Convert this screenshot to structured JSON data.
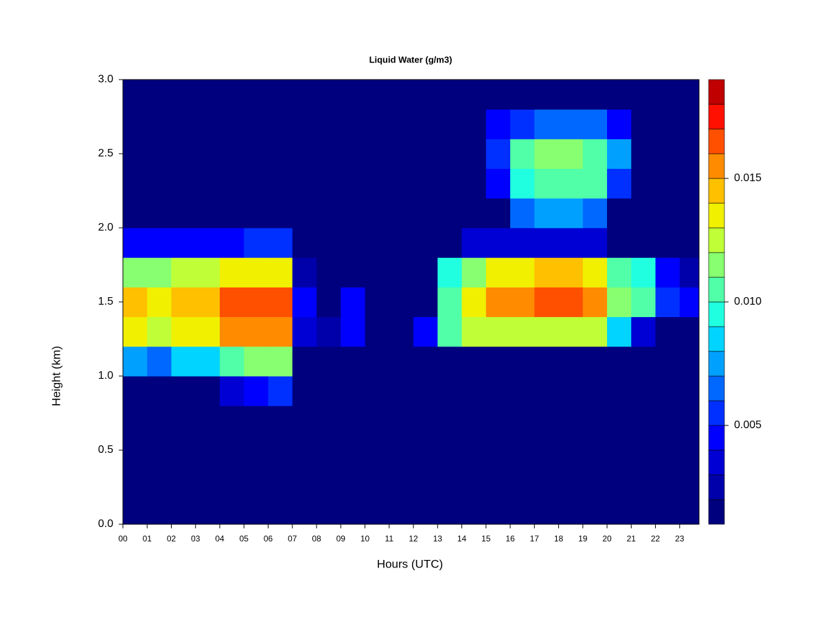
{
  "chart_data": {
    "type": "heatmap",
    "title": "Liquid Water (g/m3)",
    "xlabel": "Hours (UTC)",
    "ylabel": "Height (km)",
    "xlim": [
      0,
      23.8
    ],
    "ylim": [
      0,
      3
    ],
    "xticks": [
      {
        "value": 0,
        "label": "00"
      },
      {
        "value": 1,
        "label": "01"
      },
      {
        "value": 2,
        "label": "02"
      },
      {
        "value": 3,
        "label": "03"
      },
      {
        "value": 4,
        "label": "04"
      },
      {
        "value": 5,
        "label": "05"
      },
      {
        "value": 6,
        "label": "06"
      },
      {
        "value": 7,
        "label": "07"
      },
      {
        "value": 8,
        "label": "08"
      },
      {
        "value": 9,
        "label": "09"
      },
      10,
      11,
      12,
      13,
      14,
      15,
      16,
      17,
      18,
      19,
      20,
      21,
      22,
      23
    ],
    "yticks": [
      {
        "value": 0,
        "label": "0.0"
      },
      0.5,
      {
        "value": 1,
        "label": "1.0"
      },
      1.5,
      {
        "value": 2,
        "label": "2.0"
      },
      2.5,
      {
        "value": 3,
        "label": "3.0"
      }
    ],
    "x": [
      0,
      1,
      2,
      3,
      4,
      5,
      6,
      7,
      8,
      9,
      10,
      11,
      12,
      13,
      14,
      15,
      16,
      17,
      18,
      19,
      20,
      21,
      22,
      23
    ],
    "y": [
      0,
      0.2,
      0.4,
      0.6,
      0.8,
      1.0,
      1.2,
      1.4,
      1.6,
      1.8,
      2.0,
      2.2,
      2.4,
      2.6,
      2.8
    ],
    "values": [
      [
        0.001,
        0.001,
        0.001,
        0.001,
        0.001,
        0.001,
        0.001,
        0.001,
        0.001,
        0.001,
        0.001,
        0.001,
        0.001,
        0.001,
        0.001,
        0.001,
        0.001,
        0.001,
        0.001,
        0.001,
        0.001,
        0.001,
        0.001,
        0.001
      ],
      [
        0.001,
        0.001,
        0.001,
        0.001,
        0.001,
        0.001,
        0.001,
        0.001,
        0.001,
        0.001,
        0.001,
        0.001,
        0.001,
        0.001,
        0.001,
        0.001,
        0.001,
        0.001,
        0.001,
        0.001,
        0.001,
        0.001,
        0.001,
        0.001
      ],
      [
        0.001,
        0.001,
        0.001,
        0.001,
        0.001,
        0.001,
        0.001,
        0.001,
        0.001,
        0.001,
        0.001,
        0.001,
        0.001,
        0.001,
        0.001,
        0.001,
        0.001,
        0.001,
        0.001,
        0.001,
        0.001,
        0.001,
        0.001,
        0.001
      ],
      [
        0.001,
        0.001,
        0.001,
        0.001,
        0.001,
        0.001,
        0.001,
        0.001,
        0.001,
        0.001,
        0.001,
        0.001,
        0.001,
        0.001,
        0.001,
        0.001,
        0.001,
        0.001,
        0.001,
        0.001,
        0.001,
        0.001,
        0.001,
        0.001
      ],
      [
        0.001,
        0.001,
        0.001,
        0.001,
        0.003,
        0.004,
        0.005,
        0.001,
        0.001,
        0.001,
        0.001,
        0.001,
        0.001,
        0.001,
        0.001,
        0.001,
        0.001,
        0.001,
        0.001,
        0.001,
        0.001,
        0.001,
        0.001,
        0.001
      ],
      [
        0.007,
        0.006,
        0.008,
        0.008,
        0.01,
        0.011,
        0.011,
        0.001,
        0.001,
        0.001,
        0.001,
        0.001,
        0.001,
        0.001,
        0.001,
        0.001,
        0.001,
        0.001,
        0.001,
        0.001,
        0.001,
        0.001,
        0.001,
        0.001
      ],
      [
        0.013,
        0.012,
        0.013,
        0.013,
        0.015,
        0.015,
        0.015,
        0.003,
        0.002,
        0.004,
        0.001,
        0.001,
        0.004,
        0.01,
        0.012,
        0.012,
        0.012,
        0.012,
        0.012,
        0.012,
        0.008,
        0.003,
        0.001,
        0.001
      ],
      [
        0.014,
        0.013,
        0.014,
        0.014,
        0.016,
        0.016,
        0.016,
        0.004,
        0.001,
        0.004,
        0.001,
        0.001,
        0.001,
        0.01,
        0.013,
        0.015,
        0.015,
        0.016,
        0.016,
        0.015,
        0.011,
        0.01,
        0.005,
        0.004
      ],
      [
        0.011,
        0.011,
        0.012,
        0.012,
        0.013,
        0.013,
        0.013,
        0.002,
        0.001,
        0.001,
        0.001,
        0.001,
        0.001,
        0.009,
        0.011,
        0.013,
        0.013,
        0.014,
        0.014,
        0.013,
        0.01,
        0.009,
        0.004,
        0.002
      ],
      [
        0.004,
        0.004,
        0.004,
        0.004,
        0.004,
        0.005,
        0.005,
        0.001,
        0.001,
        0.001,
        0.001,
        0.001,
        0.001,
        0.001,
        0.003,
        0.003,
        0.003,
        0.003,
        0.003,
        0.003,
        0.001,
        0.001,
        0.001,
        0.001
      ],
      [
        0.001,
        0.001,
        0.001,
        0.001,
        0.001,
        0.001,
        0.001,
        0.001,
        0.001,
        0.001,
        0.001,
        0.001,
        0.001,
        0.001,
        0.001,
        0.001,
        0.006,
        0.007,
        0.007,
        0.006,
        0.001,
        0.001,
        0.001,
        0.001
      ],
      [
        0.001,
        0.001,
        0.001,
        0.001,
        0.001,
        0.001,
        0.001,
        0.001,
        0.001,
        0.001,
        0.001,
        0.001,
        0.001,
        0.001,
        0.001,
        0.004,
        0.009,
        0.01,
        0.01,
        0.01,
        0.005,
        0.001,
        0.001,
        0.001
      ],
      [
        0.001,
        0.001,
        0.001,
        0.001,
        0.001,
        0.001,
        0.001,
        0.001,
        0.001,
        0.001,
        0.001,
        0.001,
        0.001,
        0.001,
        0.001,
        0.005,
        0.01,
        0.011,
        0.011,
        0.01,
        0.007,
        0.001,
        0.001,
        0.001
      ],
      [
        0.001,
        0.001,
        0.001,
        0.001,
        0.001,
        0.001,
        0.001,
        0.001,
        0.001,
        0.001,
        0.001,
        0.001,
        0.001,
        0.001,
        0.001,
        0.004,
        0.005,
        0.006,
        0.006,
        0.006,
        0.004,
        0.001,
        0.001,
        0.001
      ],
      [
        0.001,
        0.001,
        0.001,
        0.001,
        0.001,
        0.001,
        0.001,
        0.001,
        0.001,
        0.001,
        0.001,
        0.001,
        0.001,
        0.001,
        0.001,
        0.001,
        0.001,
        0.001,
        0.001,
        0.001,
        0.001,
        0.001,
        0.001,
        0.001
      ]
    ],
    "levels": [
      0.001,
      0.002,
      0.003,
      0.004,
      0.005,
      0.006,
      0.007,
      0.008,
      0.009,
      0.01,
      0.011,
      0.012,
      0.013,
      0.014,
      0.015,
      0.016,
      0.017,
      0.018,
      0.019
    ],
    "colors": [
      "#00007f",
      "#0000aa",
      "#0000d4",
      "#0000ff",
      "#0030ff",
      "#0068ff",
      "#00a0ff",
      "#00d4ff",
      "#20ffe0",
      "#50ffa8",
      "#88ff70",
      "#c0ff38",
      "#f0f000",
      "#ffc000",
      "#ff8c00",
      "#ff5000",
      "#ff1000",
      "#c00000"
    ],
    "colorbar_ticks": [
      0.005,
      {
        "value": 0.01,
        "label": "0.010"
      },
      {
        "value": 0.015,
        "label": "0.015"
      }
    ]
  }
}
